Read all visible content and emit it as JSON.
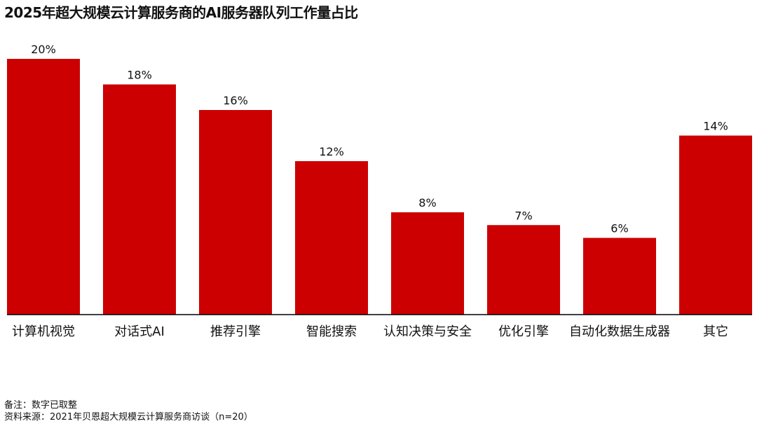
{
  "chart_data": {
    "type": "bar",
    "title": "2025年超大规模云计算服务商的AI服务器队列工作量占比",
    "categories": [
      "计算机视觉",
      "对话式AI",
      "推荐引擎",
      "智能搜索",
      "认知决策与安全",
      "优化引擎",
      "自动化数据生成器",
      "其它"
    ],
    "values": [
      20,
      18,
      16,
      12,
      8,
      7,
      6,
      14
    ],
    "value_labels": [
      "20%",
      "18%",
      "16%",
      "12%",
      "8%",
      "7%",
      "6%",
      "14%"
    ],
    "unit": "%",
    "ylim": [
      0,
      20
    ],
    "grid": false,
    "bar_color": "#cc0000",
    "axis_color": "#000000"
  },
  "notes": {
    "note": "备注：数字已取整",
    "source": "资料来源：2021年贝恩超大规模云计算服务商访谈（n=20）"
  }
}
